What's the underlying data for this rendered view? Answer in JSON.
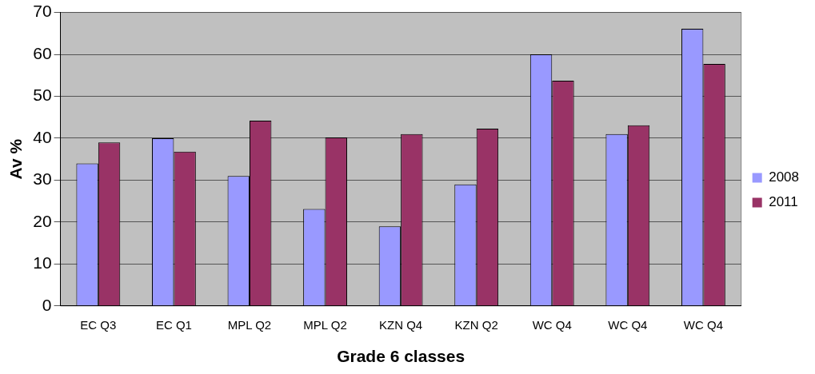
{
  "chart_data": {
    "type": "bar",
    "xlabel": "Grade 6 classes",
    "ylabel": "Av %",
    "categories": [
      "EC Q3",
      "EC Q1",
      "MPL Q2",
      "MPL Q2",
      "KZN Q4",
      "KZN Q2",
      "WC Q4",
      "WC Q4",
      "WC Q4"
    ],
    "series": [
      {
        "name": "2008",
        "color": "#9999ff",
        "values": [
          34,
          40,
          31,
          23.1,
          19,
          29,
          60,
          41,
          66.1
        ]
      },
      {
        "name": "2011",
        "color": "#993366",
        "values": [
          39,
          36.8,
          44.2,
          40.2,
          41,
          42.3,
          53.7,
          43.1,
          57.7
        ]
      }
    ],
    "ylim": [
      0,
      70
    ],
    "yticks": [
      0,
      10,
      20,
      30,
      40,
      50,
      60,
      70
    ],
    "grid": "y",
    "legend": "right"
  }
}
